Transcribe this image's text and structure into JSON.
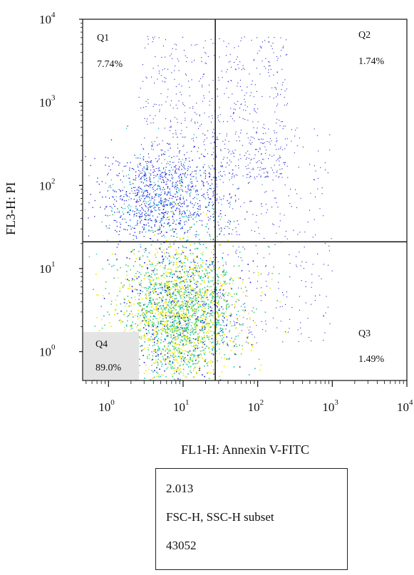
{
  "chart_data": {
    "type": "scatter",
    "subtype": "flow-cytometry density dot plot with quadrant gates",
    "scale": "log",
    "xlabel": "FL1-H: Annexin V-FITC",
    "ylabel": "FL3-H: PI",
    "xlim": [
      0.45,
      10000
    ],
    "ylim": [
      0.45,
      10000
    ],
    "x_ticks": [
      {
        "value": 1,
        "label": "10",
        "exp": "0"
      },
      {
        "value": 10,
        "label": "10",
        "exp": "1"
      },
      {
        "value": 100,
        "label": "10",
        "exp": "2"
      },
      {
        "value": 1000,
        "label": "10",
        "exp": "3"
      },
      {
        "value": 10000,
        "label": "10",
        "exp": "4"
      }
    ],
    "y_ticks": [
      {
        "value": 1,
        "label": "10",
        "exp": "0"
      },
      {
        "value": 10,
        "label": "10",
        "exp": "1"
      },
      {
        "value": 100,
        "label": "10",
        "exp": "2"
      },
      {
        "value": 1000,
        "label": "10",
        "exp": "3"
      },
      {
        "value": 10000,
        "label": "10",
        "exp": "4"
      }
    ],
    "gates": {
      "x": 27,
      "y": 21
    },
    "quadrants": [
      {
        "name": "Q1",
        "percent": "7.74%",
        "fraction": 0.0774
      },
      {
        "name": "Q2",
        "percent": "1.74%",
        "fraction": 0.0174
      },
      {
        "name": "Q3",
        "percent": "1.49%",
        "fraction": 0.0149
      },
      {
        "name": "Q4",
        "percent": "89.0%",
        "fraction": 0.89
      }
    ],
    "colors": {
      "low_density": "#1f1fd6",
      "mid_density": "#18b8c8",
      "high_density": "#f2e600",
      "gate_lines": "#111111",
      "q4_label_bg": "#e4e4e4"
    }
  },
  "stats_box": {
    "line1": "2.013",
    "line2": "FSC-H, SSC-H subset",
    "line3": "43052"
  }
}
